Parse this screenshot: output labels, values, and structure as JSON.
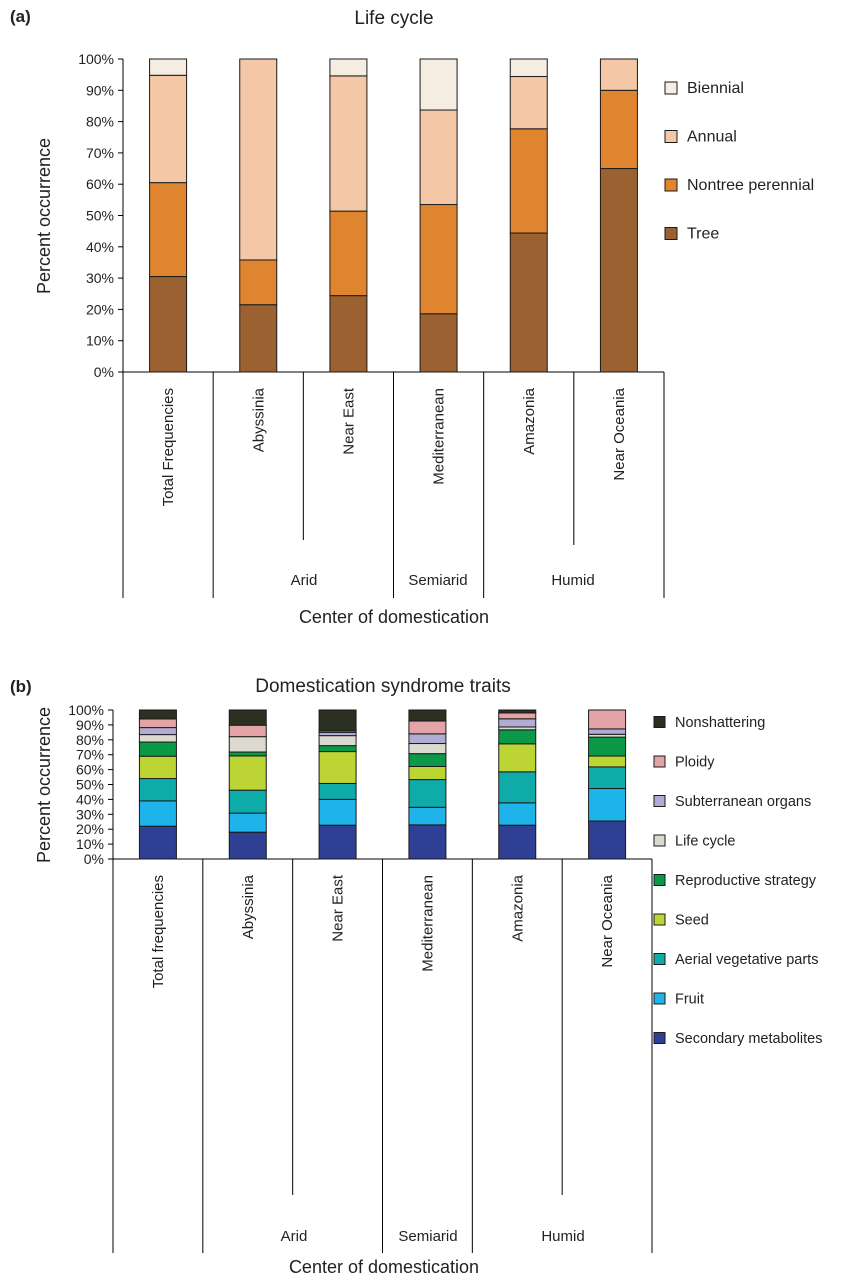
{
  "chart_data": [
    {
      "panel": "(a)",
      "type": "bar",
      "stacked": true,
      "title": "Life cycle",
      "ylabel": "Percent occurrence",
      "xlabel": "Center of domestication",
      "ylim": [
        0,
        100
      ],
      "yticks": [
        "0%",
        "10%",
        "20%",
        "30%",
        "40%",
        "50%",
        "60%",
        "70%",
        "80%",
        "90%",
        "100%"
      ],
      "categories": [
        "Total Frequencies",
        "Abyssinia",
        "Near East",
        "Mediterranean",
        "Amazonia",
        "Near Oceania"
      ],
      "groups": [
        "Arid",
        "Semiarid",
        "Humid"
      ],
      "legend_position": "right",
      "series": [
        {
          "name": "Tree",
          "color": "#9b6131",
          "values": [
            30.5,
            21.5,
            24.4,
            18.6,
            44.4,
            65.0
          ]
        },
        {
          "name": "Nontree perennial",
          "color": "#e0852f",
          "values": [
            30.0,
            14.3,
            27.0,
            34.9,
            33.3,
            25.0
          ]
        },
        {
          "name": "Annual",
          "color": "#f4c8a6",
          "values": [
            34.3,
            64.2,
            43.2,
            30.2,
            16.7,
            10.0
          ]
        },
        {
          "name": "Biennial",
          "color": "#f6ede2",
          "values": [
            5.2,
            0.0,
            5.4,
            16.3,
            5.6,
            0.0
          ]
        }
      ]
    },
    {
      "panel": "(b)",
      "type": "bar",
      "stacked": true,
      "title": "Domestication syndrome traits",
      "ylabel": "Percent occurrence",
      "xlabel": "Center of domestication",
      "ylim": [
        0,
        100
      ],
      "yticks": [
        "0%",
        "10%",
        "20%",
        "30%",
        "40%",
        "50%",
        "60%",
        "70%",
        "80%",
        "90%",
        "100%"
      ],
      "categories": [
        "Total frequencies",
        "Abyssinia",
        "Near East",
        "Mediterranean",
        "Amazonia",
        "Near Oceania"
      ],
      "groups": [
        "Arid",
        "Semiarid",
        "Humid"
      ],
      "legend_position": "right",
      "series": [
        {
          "name": "Secondary metabolites",
          "color": "#2e3f94",
          "values": [
            22.0,
            18.0,
            22.7,
            22.9,
            22.7,
            25.5
          ]
        },
        {
          "name": "Fruit",
          "color": "#1eb4ea",
          "values": [
            17.0,
            12.8,
            17.3,
            11.8,
            15.0,
            21.8
          ]
        },
        {
          "name": "Aerial vegetative parts",
          "color": "#0eaba9",
          "values": [
            15.0,
            15.4,
            10.7,
            18.6,
            20.8,
            14.5
          ]
        },
        {
          "name": "Seed",
          "color": "#bcd534",
          "values": [
            15.0,
            23.0,
            21.4,
            8.8,
            18.8,
            7.3
          ]
        },
        {
          "name": "Reproductive strategy",
          "color": "#0b9948",
          "values": [
            9.5,
            2.6,
            4.0,
            8.6,
            9.4,
            12.7
          ]
        },
        {
          "name": "Life cycle",
          "color": "#dcdacf",
          "values": [
            5.0,
            10.3,
            6.7,
            6.8,
            1.9,
            1.9
          ]
        },
        {
          "name": "Subterranean organs",
          "color": "#b0acd3",
          "values": [
            4.7,
            0.0,
            2.2,
            6.5,
            5.5,
            3.6
          ]
        },
        {
          "name": "Ploidy",
          "color": "#e2a4a7",
          "values": [
            5.8,
            7.7,
            1.0,
            8.6,
            3.9,
            12.7
          ]
        },
        {
          "name": "Nonshattering",
          "color": "#2c3021",
          "values": [
            6.0,
            10.2,
            14.0,
            7.4,
            2.0,
            0.0
          ]
        }
      ]
    }
  ]
}
